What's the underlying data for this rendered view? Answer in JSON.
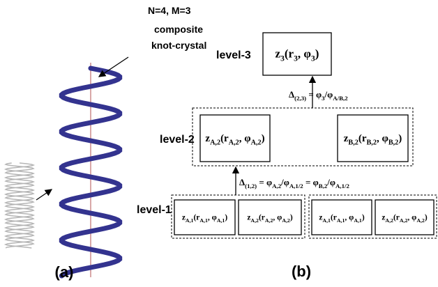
{
  "panel_a": {
    "annotation": [
      "N=4, M=3",
      "composite",
      "knot-crystal"
    ],
    "label": "(a)"
  },
  "panel_b": {
    "label": "(b)",
    "levels": [
      "level-3",
      "level-2",
      "level-1"
    ],
    "boxes": [
      {
        "parts": [
          "z",
          "3",
          "(r",
          "3",
          ", φ",
          "3",
          ")"
        ]
      },
      {
        "parts": [
          "z",
          "A,2",
          "(r",
          "A,2",
          ", φ",
          "A,2",
          ")"
        ]
      },
      {
        "parts": [
          "z",
          "B,2",
          "(r",
          "B,2",
          ", φ",
          "B,2",
          ")"
        ]
      },
      {
        "parts": [
          "z",
          "A,1",
          "(r",
          "A,1",
          ", φ",
          "A,1",
          ")"
        ]
      },
      {
        "parts": [
          "z",
          "A,2",
          "(r",
          "A,2",
          ", φ",
          "A,2",
          ")"
        ]
      },
      {
        "parts": [
          "z",
          "A,1",
          "(r",
          "A,1",
          ", φ",
          "A,1",
          ")"
        ]
      },
      {
        "parts": [
          "z",
          "A,2",
          "(r",
          "A,2",
          ", φ",
          "A,2",
          ")"
        ]
      }
    ],
    "relations": [
      {
        "parts": [
          "Δ",
          "(2,3)",
          " = φ",
          "3",
          "/φ",
          "A/B,2"
        ]
      },
      {
        "parts": [
          "Δ",
          "(1,2)",
          " = φ",
          "A,2",
          "/φ",
          "A,1/2",
          " = φ",
          "B,2",
          "/φ",
          "A,1/2"
        ]
      }
    ]
  }
}
